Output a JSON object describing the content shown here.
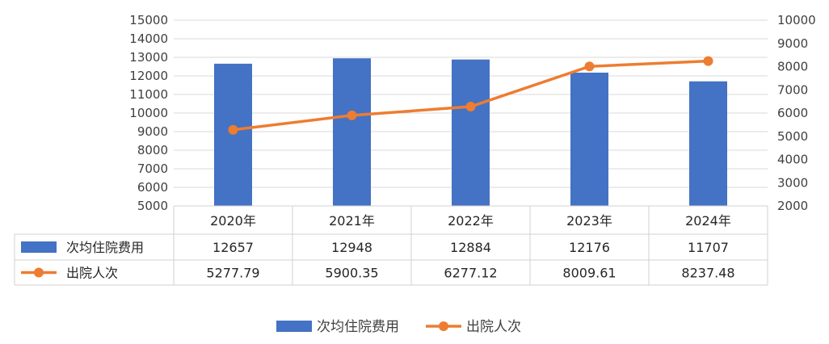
{
  "chart_data": {
    "type": "bar-line-table",
    "categories": [
      "2020年",
      "2021年",
      "2022年",
      "2023年",
      "2024年"
    ],
    "series": [
      {
        "name": "次均住院费用",
        "kind": "bar",
        "axis": "left",
        "values": [
          12657,
          12948,
          12884,
          12176,
          11707
        ],
        "value_labels": [
          "12657",
          "12948",
          "12884",
          "12176",
          "11707"
        ],
        "color": "#4472C4"
      },
      {
        "name": "出院人次",
        "kind": "line",
        "axis": "right",
        "values": [
          5277.79,
          5900.35,
          6277.12,
          8009.61,
          8237.48
        ],
        "value_labels": [
          "5277.79",
          "5900.35",
          "6277.12",
          "8009.61",
          "8237.48"
        ],
        "color": "#ED7D31"
      }
    ],
    "y_left": {
      "min": 5000,
      "max": 15000,
      "ticks": [
        "5000",
        "6000",
        "7000",
        "8000",
        "9000",
        "10000",
        "11000",
        "12000",
        "13000",
        "14000",
        "15000"
      ]
    },
    "y_right": {
      "min": 2000,
      "max": 10000,
      "ticks": [
        "2000",
        "3000",
        "4000",
        "5000",
        "6000",
        "7000",
        "8000",
        "9000",
        "10000"
      ]
    },
    "grid": true,
    "data_table": true,
    "legend_position": "bottom",
    "title": "",
    "xlabel": "",
    "ylabel": ""
  }
}
